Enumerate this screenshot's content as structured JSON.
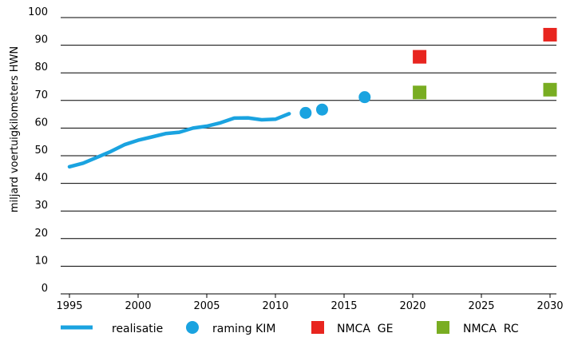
{
  "chart_data": {
    "type": "line",
    "title": "",
    "xlabel": "",
    "ylabel": "miljard voertuigkilometers HWN",
    "xlim": [
      1995,
      2030
    ],
    "ylim": [
      0,
      100
    ],
    "x_ticks": [
      1995,
      2000,
      2005,
      2010,
      2015,
      2020,
      2025,
      2030
    ],
    "y_ticks": [
      0,
      10,
      20,
      30,
      40,
      50,
      60,
      70,
      80,
      90,
      100
    ],
    "grid": "horizontal",
    "legend_position": "bottom",
    "colors": {
      "realisatie": "#1aa3e0",
      "raming": "#1aa3e0",
      "nmca_ge": "#e8251f",
      "nmca_rc": "#79ad22"
    },
    "series": [
      {
        "name": "realisatie",
        "kind": "line",
        "x": [
          1995,
          1996,
          1997,
          1998,
          1999,
          2000,
          2001,
          2002,
          2003,
          2004,
          2005,
          2006,
          2007,
          2008,
          2009,
          2010,
          2011
        ],
        "y": [
          46,
          47.3,
          49.4,
          51.5,
          54,
          55.6,
          56.8,
          58,
          58.5,
          60,
          60.7,
          61.9,
          63.6,
          63.7,
          63,
          63.2,
          65.2
        ]
      },
      {
        "name": "raming KIM",
        "kind": "circle",
        "x": [
          2012.2,
          2013.4,
          2016.5
        ],
        "y": [
          65.5,
          66.7,
          71.2
        ]
      },
      {
        "name": "NMCA  GE",
        "kind": "square",
        "x": [
          2020.5,
          2030
        ],
        "y": [
          85.8,
          93.8
        ]
      },
      {
        "name": "NMCA  RC",
        "kind": "square",
        "x": [
          2020.5,
          2030
        ],
        "y": [
          72.9,
          73.9
        ]
      }
    ]
  }
}
